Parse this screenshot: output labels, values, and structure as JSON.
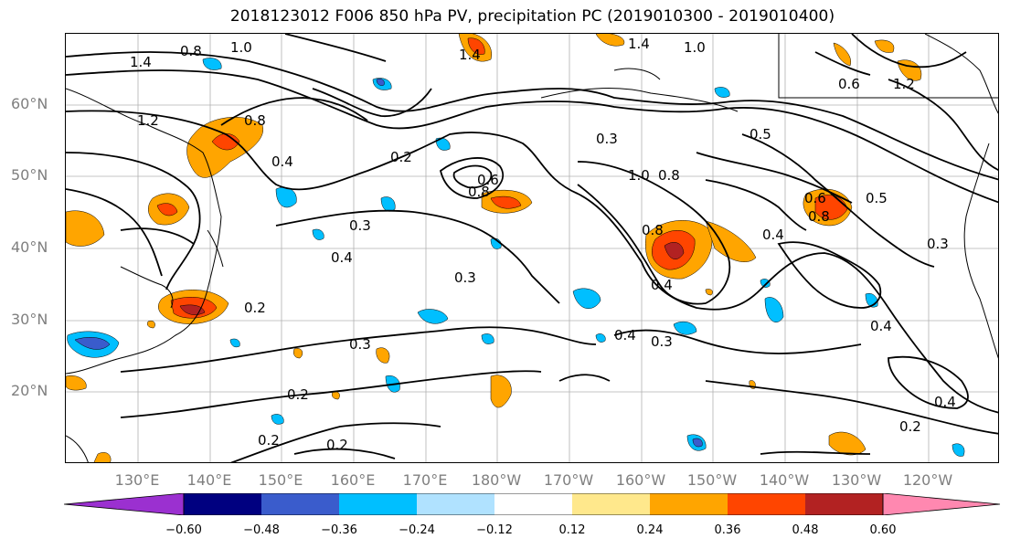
{
  "title": "2018123012 F006 850 hPa PV, precipitation PC (2019010300 - 2019010400)",
  "lat_labels": [
    "60°N",
    "50°N",
    "40°N",
    "30°N",
    "20°N"
  ],
  "lon_labels": [
    "130°E",
    "140°E",
    "150°E",
    "160°E",
    "170°E",
    "180°W",
    "170°W",
    "160°W",
    "150°W",
    "140°W",
    "130°W",
    "120°W"
  ],
  "colorbar": {
    "ticks": [
      "−0.60",
      "−0.48",
      "−0.36",
      "−0.24",
      "−0.12",
      "0.12",
      "0.24",
      "0.36",
      "0.48",
      "0.60"
    ],
    "colors": [
      "#9b30d0",
      "#000080",
      "#3a5ccc",
      "#00bfff",
      "#b0e2ff",
      "#ffffff",
      "#ffe88c",
      "#ffa500",
      "#ff4500",
      "#b22222",
      "#ff88b0"
    ]
  },
  "contour_labels": [
    "0.8",
    "1.4",
    "1.0",
    "0.8",
    "1.2",
    "0.4",
    "0.2",
    "0.3",
    "0.4",
    "0.3",
    "0.2",
    "0.3",
    "0.2",
    "0.2",
    "0.2",
    "0.3",
    "0.8",
    "0.6",
    "1.0",
    "0.8",
    "0.8",
    "0.4",
    "0.3",
    "0.5",
    "0.4",
    "0.6",
    "0.5",
    "0.4",
    "0.3",
    "0.4",
    "0.2",
    "1.4",
    "1.0",
    "1.4",
    "1.2",
    "0.6",
    "0.4",
    "0.8"
  ]
}
